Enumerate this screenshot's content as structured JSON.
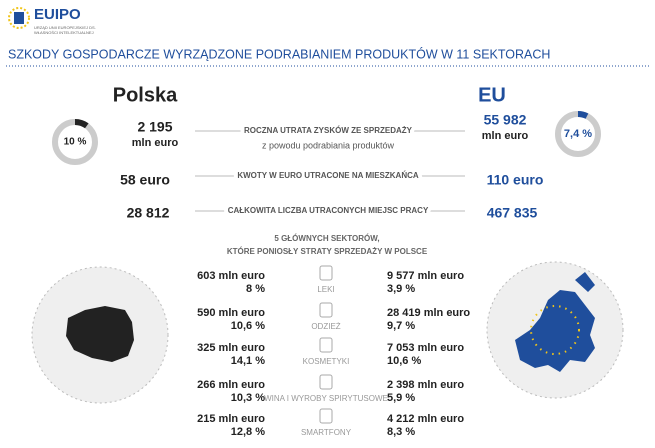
{
  "header": {
    "logo": "EUIPO",
    "logo_subtitle_1": "URZĄD UNII EUROPEJSKIEJ DS.",
    "logo_subtitle_2": "WŁASNOŚCI INTELEKTUALNEJ",
    "title": "SZKODY GOSPODARCZE WYRZĄDZONE PODRABIANIEM PRODUKTÓW W 11 SEKTORACH"
  },
  "columns": {
    "left": "Polska",
    "right": "EU"
  },
  "donuts": {
    "left": {
      "value": 10,
      "label": "10 %"
    },
    "right": {
      "value": 7.4,
      "label": "7,4 %"
    }
  },
  "stats": [
    {
      "left": "2 195",
      "left_unit": "mln euro",
      "label": "ROCZNA UTRATA ZYSKÓW ZE SPRZEDAŻY",
      "sublabel": "z powodu podrabiania produktów",
      "right": "55 982",
      "right_unit": "mln euro"
    },
    {
      "left": "58 euro",
      "label": "KWOTY W EURO UTRACONE NA MIESZKAŃCA",
      "right": "110 euro"
    },
    {
      "left": "28 812",
      "label": "CAŁKOWITA LICZBA UTRACONYCH MIEJSC PRACY",
      "right": "467 835"
    }
  ],
  "sectors_heading": [
    "5 GŁÓWNYCH SEKTORÓW,",
    "KTÓRE PONIOSŁY STRATY SPRZEDAŻY W POLSCE"
  ],
  "sectors": [
    {
      "pl_value": "603 mln euro",
      "pl_share": "8 %",
      "name": "LEKI",
      "eu_value": "9 577 mln euro",
      "eu_share": "3,9 %"
    },
    {
      "pl_value": "590 mln euro",
      "pl_share": "10,6 %",
      "name": "ODZIEŻ",
      "eu_value": "28 419 mln euro",
      "eu_share": "9,7 %"
    },
    {
      "pl_value": "325 mln euro",
      "pl_share": "14,1 %",
      "name": "KOSMETYKI",
      "eu_value": "7 053 mln euro",
      "eu_share": "10,6 %"
    },
    {
      "pl_value": "266 mln euro",
      "pl_share": "10,3 %",
      "name": "WINA I WYROBY SPIRYTUSOWE",
      "eu_value": "2 398 mln euro",
      "eu_share": "5,9 %"
    },
    {
      "pl_value": "215 mln euro",
      "pl_share": "12,8 %",
      "name": "SMARTFONY",
      "eu_value": "4 212 mln euro",
      "eu_share": "8,3 %"
    }
  ]
}
